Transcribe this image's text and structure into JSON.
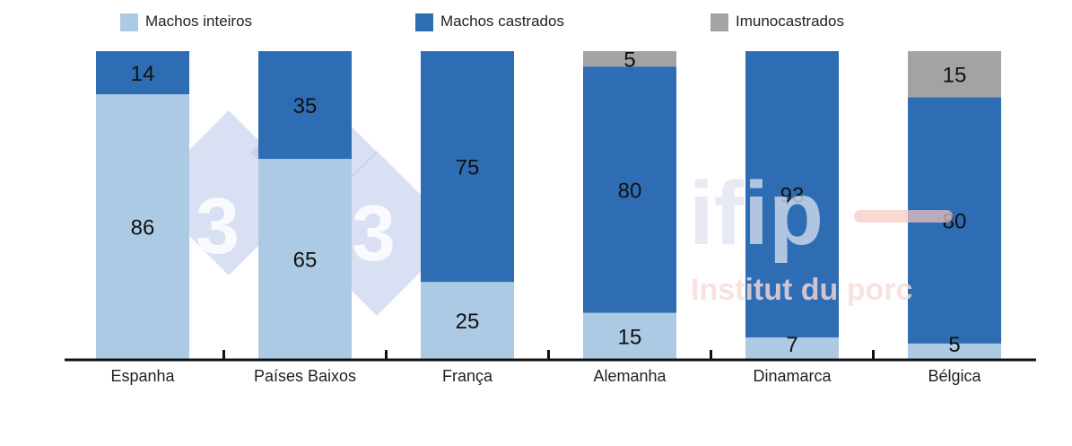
{
  "chart_data": {
    "type": "bar",
    "stacked": true,
    "normalized_percent": true,
    "categories": [
      "Espanha",
      "Países Baixos",
      "França",
      "Alemanha",
      "Dinamarca",
      "Bélgica"
    ],
    "series": [
      {
        "name": "Machos inteiros",
        "color": "#adcae5",
        "values": [
          86,
          65,
          25,
          15,
          7,
          5
        ]
      },
      {
        "name": "Machos castrados",
        "color": "#2e6db4",
        "values": [
          14,
          35,
          75,
          80,
          93,
          80
        ]
      },
      {
        "name": "Imunocastrados",
        "color": "#a3a3a3",
        "values": [
          null,
          null,
          null,
          5,
          null,
          15
        ]
      }
    ],
    "ylim": [
      0,
      100
    ],
    "legend_position": "top",
    "grid": false,
    "watermarks": {
      "left_numbers": [
        "3",
        "3",
        "3"
      ],
      "right_logo": "ifip",
      "right_subtitle": "Institut du porc"
    }
  }
}
